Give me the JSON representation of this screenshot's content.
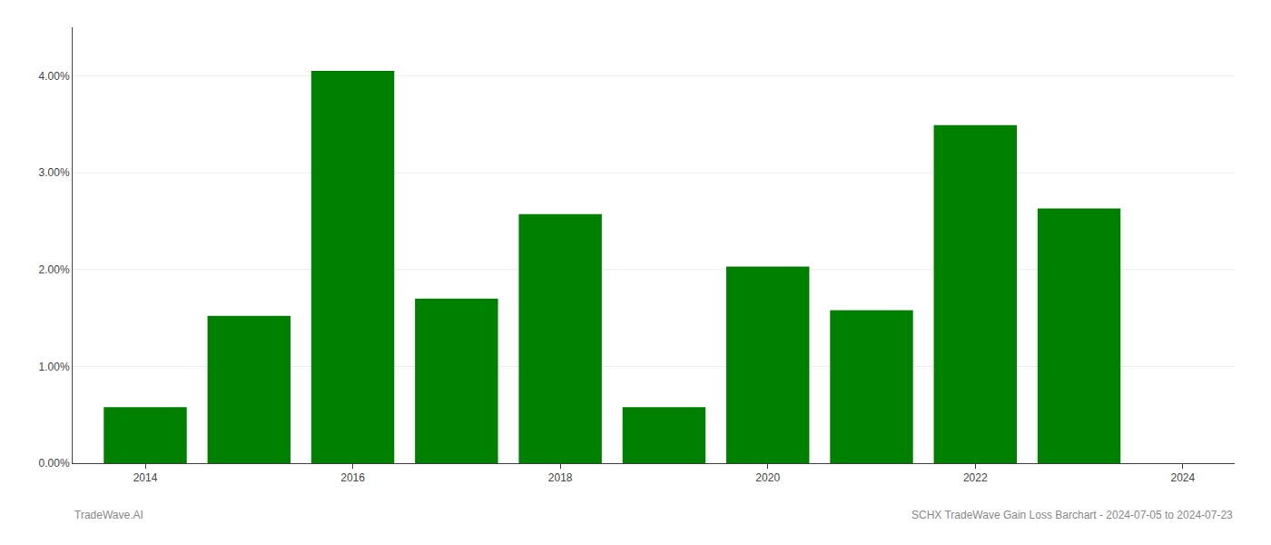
{
  "chart_data": {
    "type": "bar",
    "x": [
      2014,
      2015,
      2016,
      2017,
      2018,
      2019,
      2020,
      2021,
      2022,
      2023
    ],
    "values": [
      0.0058,
      0.0152,
      0.0405,
      0.017,
      0.0257,
      0.0058,
      0.0203,
      0.0158,
      0.0349,
      0.0263
    ],
    "color": "#008000",
    "xlim": [
      2013.3,
      2024.5
    ],
    "xticks": [
      2014,
      2016,
      2018,
      2020,
      2022,
      2024
    ],
    "ylim": [
      0,
      0.045
    ],
    "yticks": [
      {
        "value": 0.0,
        "label": "0.00%"
      },
      {
        "value": 0.01,
        "label": "1.00%"
      },
      {
        "value": 0.02,
        "label": "2.00%"
      },
      {
        "value": 0.03,
        "label": "3.00%"
      },
      {
        "value": 0.04,
        "label": "4.00%"
      }
    ],
    "grid": true,
    "annotations": [
      "TradeWave.AI",
      "SCHX TradeWave Gain Loss Barchart - 2024-07-05 to 2024-07-23"
    ]
  }
}
